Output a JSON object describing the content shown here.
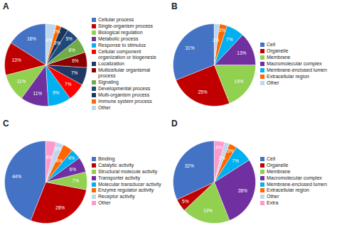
{
  "chart_data": [
    {
      "type": "pie",
      "title": "A",
      "categories": [
        "Cellular process",
        "Single-organism process",
        "Biological regulation",
        "Metabolic process",
        "Response to stimulus",
        "Cellular component organization or biogenesis",
        "Localization",
        "Multicellular organismal process",
        "Signaling",
        "Developmental process",
        "Multi-organism process",
        "Immune system process",
        "Other"
      ],
      "values": [
        16,
        13,
        11,
        11,
        9,
        7,
        7,
        6,
        6,
        5,
        3,
        2,
        4
      ],
      "value_labels": [
        "16%",
        "13%",
        "11%",
        "11%",
        "9%",
        "7%",
        "7%",
        "6%",
        "6%",
        "5%",
        "3%",
        "2%",
        "4%"
      ],
      "colors": [
        "#4472C4",
        "#C00000",
        "#92D050",
        "#7030A0",
        "#00B0F0",
        "#FF0000",
        "#1F3864",
        "#8B0000",
        "#70AD47",
        "#1F497D",
        "#17375E",
        "#FF6600",
        "#BDD7EE"
      ],
      "data_labels": true,
      "legend": "right"
    },
    {
      "type": "pie",
      "title": "B",
      "categories": [
        "Cell",
        "Organelle",
        "Membrane",
        "Macromolecular complex",
        "Membrane-enclosed lumen",
        "Extracellular region",
        "Other"
      ],
      "values": [
        31,
        25,
        19,
        13,
        7,
        3,
        2
      ],
      "value_labels": [
        "31%",
        "25%",
        "19%",
        "13%",
        "7%",
        "3%",
        "2%"
      ],
      "colors": [
        "#4472C4",
        "#C00000",
        "#92D050",
        "#7030A0",
        "#00B0F0",
        "#FF6600",
        "#BDD7EE"
      ],
      "data_labels": true,
      "legend": "right"
    },
    {
      "type": "pie",
      "title": "C",
      "categories": [
        "Binding",
        "Catalytic activity",
        "Structural molecule activity",
        "Transporter activity",
        "Molecular transducer activity",
        "Enzyme regulator activity",
        "Receptor activity",
        "Other"
      ],
      "values": [
        44,
        28,
        7,
        6,
        4,
        4,
        3,
        4
      ],
      "value_labels": [
        "44%",
        "28%",
        "7%",
        "6%",
        "4%",
        "4%",
        "3%",
        "4%"
      ],
      "colors": [
        "#4472C4",
        "#C00000",
        "#92D050",
        "#7030A0",
        "#00B0F0",
        "#FF6600",
        "#BDD7EE",
        "#FF99CC"
      ],
      "data_labels": true,
      "legend": "right"
    },
    {
      "type": "pie",
      "title": "D",
      "categories": [
        "Cell",
        "Organelle",
        "Membrane",
        "Macromolecular complex",
        "Membrane-enclosed lumen",
        "Extracellular region",
        "Other",
        "Extra"
      ],
      "values": [
        32,
        5,
        19,
        28,
        7,
        3,
        2,
        4
      ],
      "value_labels": [
        "32%",
        "5%",
        "19%",
        "28%",
        "7%",
        "3%",
        "2%",
        "4%"
      ],
      "colors": [
        "#4472C4",
        "#C00000",
        "#92D050",
        "#7030A0",
        "#00B0F0",
        "#FF6600",
        "#BDD7EE",
        "#FF99CC"
      ],
      "data_labels": true,
      "legend": "right"
    }
  ]
}
